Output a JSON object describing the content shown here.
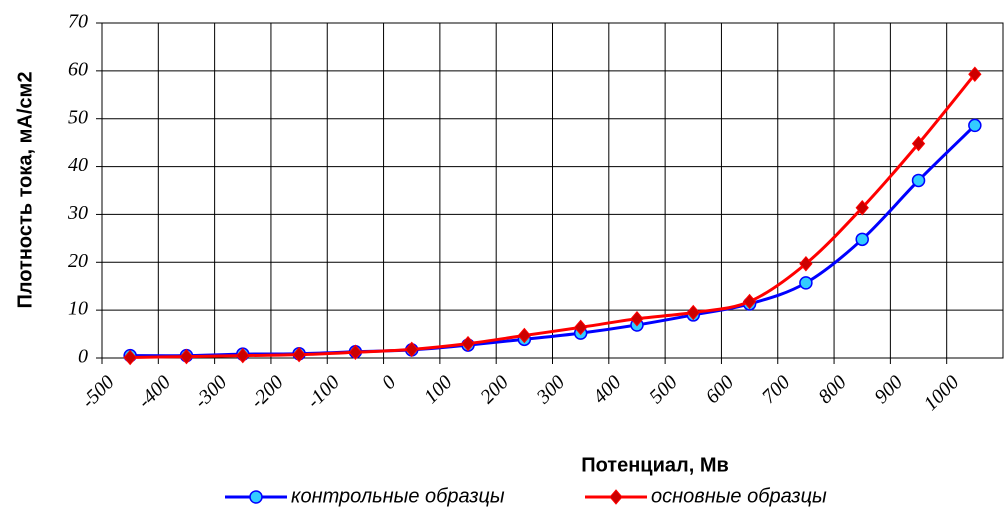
{
  "chart_data": {
    "type": "line",
    "xlabel": "Потенциал, Мв",
    "ylabel": "Плотность тока, мА/см2",
    "x": [
      -450,
      -350,
      -250,
      -150,
      -50,
      50,
      150,
      250,
      350,
      450,
      550,
      650,
      750,
      850,
      950,
      1050
    ],
    "series": [
      {
        "name": "контрольные образцы",
        "color": "#0000ff",
        "marker_color": "#33ccff",
        "marker": "circle",
        "values": [
          0.5,
          0.5,
          0.8,
          0.9,
          1.3,
          1.7,
          2.7,
          3.9,
          5.2,
          6.9,
          9.0,
          11.3,
          15.7,
          24.8,
          37.1,
          48.6
        ]
      },
      {
        "name": "основные образцы",
        "color": "#ff0000",
        "marker_color": "#cc0000",
        "marker": "diamond",
        "values": [
          0.1,
          0.3,
          0.5,
          0.7,
          1.2,
          1.8,
          3.0,
          4.7,
          6.4,
          8.2,
          9.5,
          11.8,
          19.7,
          31.4,
          44.8,
          59.3
        ]
      }
    ],
    "xlim": [
      -500,
      1100
    ],
    "xticks": [
      -500,
      -400,
      -300,
      -200,
      -100,
      0,
      100,
      200,
      300,
      400,
      500,
      600,
      700,
      800,
      900,
      1000
    ],
    "ylim": [
      0,
      70
    ],
    "yticks": [
      0,
      10,
      20,
      30,
      40,
      50,
      60,
      70
    ],
    "grid": true,
    "legend": "bottom"
  }
}
